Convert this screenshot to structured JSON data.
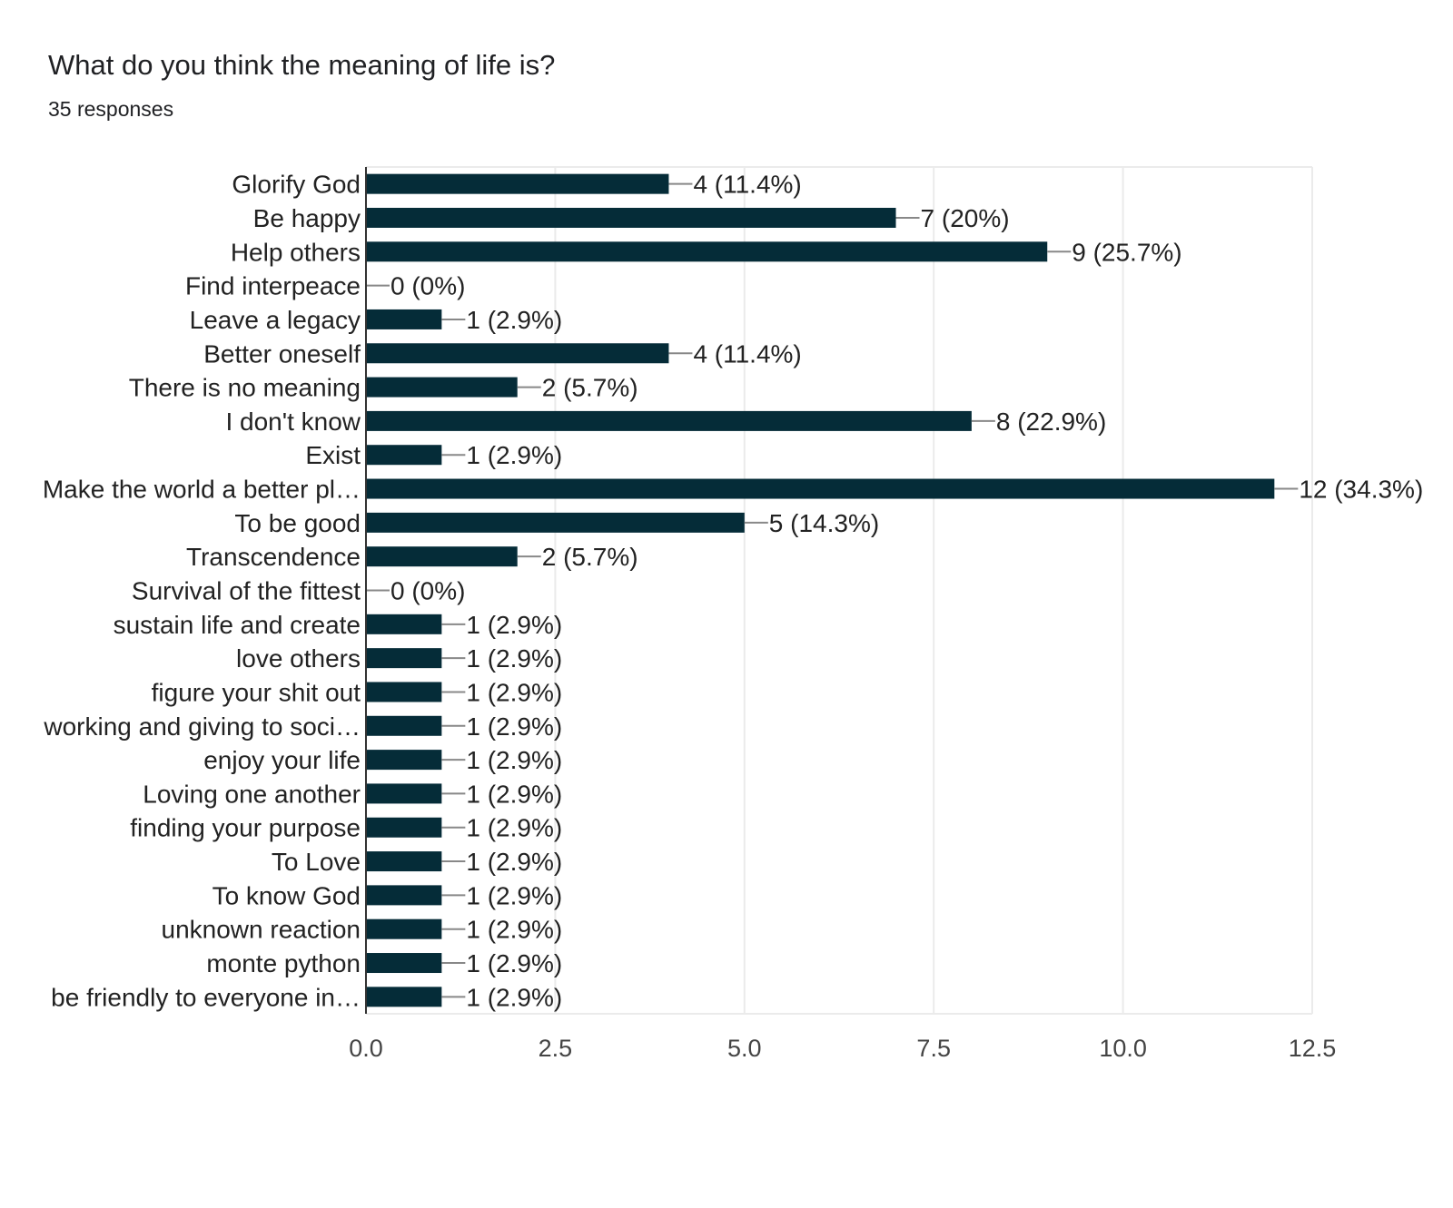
{
  "header": {
    "question": "What do you think the meaning of life is?",
    "responses": "35 responses"
  },
  "colors": {
    "bar": "#052c38",
    "grid": "#ebebeb",
    "axis": "#333333",
    "leader": "#888888",
    "text": "#222222",
    "tick_text": "#444444"
  },
  "chart_data": {
    "type": "bar",
    "orientation": "horizontal",
    "title": "What do you think the meaning of life is?",
    "subtitle": "35 responses",
    "categories": [
      "Glorify God",
      "Be happy",
      "Help others",
      "Find interpeace",
      "Leave a legacy",
      "Better oneself",
      "There is no meaning",
      "I don't know",
      "Exist",
      "Make the world a better pl…",
      "To be good",
      "Transcendence",
      "Survival of the fittest",
      "sustain life and create",
      "love others",
      "figure your shit out",
      "working and giving to soci…",
      "enjoy your life",
      "Loving one another",
      "finding your purpose",
      "To Love",
      "To know God",
      "unknown reaction",
      "monte python",
      "be friendly to everyone in…"
    ],
    "values": [
      4,
      7,
      9,
      0,
      1,
      4,
      2,
      8,
      1,
      12,
      5,
      2,
      0,
      1,
      1,
      1,
      1,
      1,
      1,
      1,
      1,
      1,
      1,
      1,
      1
    ],
    "data_labels": [
      "4 (11.4%)",
      "7 (20%)",
      "9 (25.7%)",
      "0 (0%)",
      "1 (2.9%)",
      "4 (11.4%)",
      "2 (5.7%)",
      "8 (22.9%)",
      "1 (2.9%)",
      "12 (34.3%)",
      "5 (14.3%)",
      "2 (5.7%)",
      "0 (0%)",
      "1 (2.9%)",
      "1 (2.9%)",
      "1 (2.9%)",
      "1 (2.9%)",
      "1 (2.9%)",
      "1 (2.9%)",
      "1 (2.9%)",
      "1 (2.9%)",
      "1 (2.9%)",
      "1 (2.9%)",
      "1 (2.9%)",
      "1 (2.9%)"
    ],
    "xlim": [
      0,
      12.5
    ],
    "xticks": [
      "0.0",
      "2.5",
      "5.0",
      "7.5",
      "10.0",
      "12.5"
    ],
    "xtick_values": [
      0,
      2.5,
      5,
      7.5,
      10,
      12.5
    ],
    "xlabel": "",
    "ylabel": "",
    "grid": true,
    "legend": "none"
  }
}
